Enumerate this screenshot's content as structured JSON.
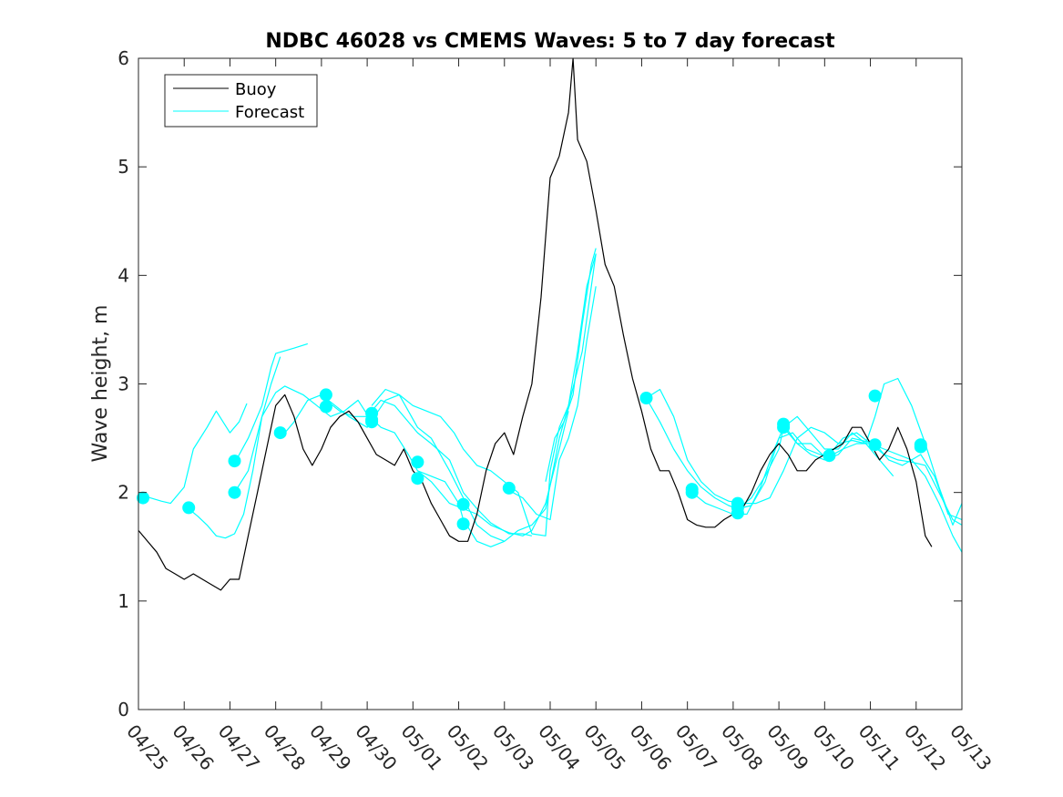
{
  "chart_data": {
    "type": "line",
    "title": "NDBC 46028 vs CMEMS Waves: 5 to 7 day forecast",
    "xlabel": "",
    "ylabel": "Wave height, m",
    "ylim": [
      0,
      6
    ],
    "xlim": [
      0,
      18
    ],
    "y_ticks": [
      "0",
      "1",
      "2",
      "3",
      "4",
      "5",
      "6"
    ],
    "x_ticks": [
      "04/25",
      "04/26",
      "04/27",
      "04/28",
      "04/29",
      "04/30",
      "05/01",
      "05/02",
      "05/03",
      "05/04",
      "05/05",
      "05/06",
      "05/07",
      "05/08",
      "05/09",
      "05/10",
      "05/11",
      "05/12",
      "05/13"
    ],
    "grid": false,
    "legend_position": "top-left",
    "colors": {
      "buoy": "#000000",
      "forecast": "#00ffff"
    },
    "series": [
      {
        "name": "Buoy",
        "x": [
          0.0,
          0.2,
          0.4,
          0.6,
          0.8,
          1.0,
          1.2,
          1.4,
          1.6,
          1.8,
          2.0,
          2.2,
          2.4,
          2.6,
          2.8,
          3.0,
          3.2,
          3.4,
          3.6,
          3.8,
          4.0,
          4.2,
          4.4,
          4.6,
          4.8,
          5.0,
          5.2,
          5.4,
          5.6,
          5.8,
          6.0,
          6.2,
          6.4,
          6.6,
          6.8,
          7.0,
          7.2,
          7.4,
          7.6,
          7.8,
          8.0,
          8.2,
          8.4,
          8.6,
          8.8,
          9.0,
          9.2,
          9.4,
          9.5,
          9.6,
          9.8,
          10.0,
          10.2,
          10.4,
          10.6,
          10.8,
          11.0,
          11.2,
          11.4,
          11.6,
          11.8,
          12.0,
          12.2,
          12.4,
          12.6,
          12.8,
          13.0,
          13.2,
          13.4,
          13.6,
          13.8,
          14.0,
          14.2,
          14.4,
          14.6,
          14.8,
          15.0,
          15.2,
          15.4,
          15.6,
          15.8,
          16.0,
          16.2,
          16.4,
          16.6,
          16.8,
          17.0,
          17.2,
          17.34
        ],
        "values": [
          1.65,
          1.55,
          1.45,
          1.3,
          1.25,
          1.2,
          1.25,
          1.2,
          1.15,
          1.1,
          1.2,
          1.2,
          1.6,
          2.0,
          2.4,
          2.8,
          2.9,
          2.7,
          2.4,
          2.25,
          2.4,
          2.6,
          2.7,
          2.75,
          2.65,
          2.5,
          2.35,
          2.3,
          2.25,
          2.4,
          2.2,
          2.1,
          1.9,
          1.75,
          1.6,
          1.55,
          1.55,
          1.8,
          2.2,
          2.45,
          2.55,
          2.35,
          2.7,
          3.0,
          3.8,
          4.9,
          5.1,
          5.5,
          6.0,
          5.25,
          5.05,
          4.6,
          4.1,
          3.9,
          3.45,
          3.05,
          2.75,
          2.4,
          2.2,
          2.2,
          2.0,
          1.75,
          1.7,
          1.68,
          1.68,
          1.75,
          1.8,
          1.85,
          2.0,
          2.2,
          2.35,
          2.45,
          2.35,
          2.2,
          2.2,
          2.3,
          2.35,
          2.4,
          2.45,
          2.6,
          2.6,
          2.45,
          2.3,
          2.4,
          2.6,
          2.4,
          2.1,
          1.6,
          1.5
        ]
      },
      {
        "name": "Forecast",
        "x": [
          0.1,
          0.5,
          0.7,
          1.0,
          1.2,
          1.5,
          1.7,
          2.0,
          2.2,
          2.37
        ],
        "values": [
          1.97,
          1.92,
          1.9,
          2.05,
          2.4,
          2.6,
          2.75,
          2.55,
          2.65,
          2.82
        ]
      },
      {
        "name": "",
        "x": [
          1.1,
          1.3,
          1.5,
          1.7,
          1.9,
          2.1,
          2.3,
          2.5,
          2.7,
          2.9,
          3.1
        ],
        "values": [
          1.85,
          1.78,
          1.7,
          1.6,
          1.58,
          1.62,
          1.8,
          2.2,
          2.7,
          3.0,
          3.25
        ]
      },
      {
        "name": "",
        "x": [
          2.1,
          2.4,
          2.7,
          2.9,
          3.0,
          3.4,
          3.7
        ],
        "values": [
          2.27,
          2.5,
          2.8,
          3.15,
          3.28,
          3.33,
          3.37
        ]
      },
      {
        "name": "",
        "x": [
          2.1,
          2.4,
          2.7,
          3.0,
          3.2,
          3.6,
          3.9,
          4.2,
          4.5,
          4.8,
          5.0,
          5.3,
          5.6,
          5.9,
          6.1,
          6.4,
          6.8,
          7.1,
          7.4,
          7.7,
          8.1,
          8.4,
          8.6,
          8.9,
          9.2,
          9.4
        ],
        "values": [
          2.0,
          2.2,
          2.7,
          2.92,
          2.98,
          2.9,
          2.8,
          2.7,
          2.75,
          2.85,
          2.72,
          2.6,
          2.55,
          2.35,
          2.2,
          2.1,
          1.9,
          1.85,
          1.8,
          1.7,
          1.63,
          1.6,
          1.65,
          1.9,
          2.4,
          2.75
        ]
      },
      {
        "name": "",
        "x": [
          3.1,
          3.4,
          3.7,
          4.0,
          4.3,
          4.6,
          5.0,
          5.4,
          5.7,
          6.1,
          6.4,
          6.8,
          7.1,
          7.4,
          7.7,
          8.0
        ],
        "values": [
          2.5,
          2.65,
          2.85,
          2.9,
          2.8,
          2.7,
          2.6,
          2.85,
          2.9,
          2.6,
          2.5,
          2.2,
          1.95,
          1.7,
          1.6,
          1.55
        ]
      },
      {
        "name": "",
        "x": [
          4.1,
          4.4,
          4.7,
          5.0,
          5.3,
          5.6,
          6.1,
          6.4,
          6.8,
          7.1,
          7.4,
          7.7,
          8.1,
          8.4,
          8.6
        ],
        "values": [
          2.85,
          2.75,
          2.7,
          2.7,
          2.85,
          2.8,
          2.55,
          2.45,
          2.3,
          2.0,
          1.85,
          1.72,
          1.62,
          1.62,
          1.6
        ]
      },
      {
        "name": "",
        "x": [
          5.1,
          5.4,
          5.7,
          6.0,
          6.3,
          6.6,
          6.9,
          7.1,
          7.4,
          7.7,
          8.0,
          8.3,
          8.6
        ],
        "values": [
          2.8,
          2.95,
          2.9,
          2.8,
          2.75,
          2.7,
          2.55,
          2.4,
          2.25,
          2.2,
          2.1,
          2.0,
          1.62
        ]
      },
      {
        "name": "",
        "x": [
          6.1,
          6.4,
          6.7,
          7.0,
          7.1,
          7.4,
          7.7,
          8.0,
          8.3,
          8.6,
          8.9,
          9.2,
          9.4,
          9.7,
          10.0
        ],
        "values": [
          2.2,
          2.15,
          2.1,
          1.9,
          1.75,
          1.55,
          1.5,
          1.55,
          1.65,
          1.7,
          1.85,
          2.5,
          2.8,
          3.3,
          4.2
        ]
      },
      {
        "name": "",
        "x": [
          8.1,
          8.4,
          8.7,
          9.0,
          9.2,
          9.4,
          9.6,
          9.8,
          10.0
        ],
        "values": [
          2.02,
          1.95,
          1.8,
          1.75,
          2.3,
          2.5,
          2.8,
          3.4,
          3.9
        ]
      },
      {
        "name": "",
        "x": [
          8.9,
          9.1,
          9.3,
          9.5,
          9.7,
          9.9,
          10.0
        ],
        "values": [
          2.1,
          2.5,
          2.65,
          2.9,
          3.55,
          4.1,
          4.25
        ]
      },
      {
        "name": "",
        "x": [
          8.6,
          8.9,
          9.0,
          9.2,
          9.4,
          9.6,
          9.8,
          10.0
        ],
        "values": [
          1.62,
          1.6,
          2.2,
          2.6,
          2.8,
          3.3,
          3.9,
          4.2
        ]
      },
      {
        "name": "",
        "x": [
          11.1,
          11.4,
          11.7,
          12.0,
          12.3,
          12.6,
          12.9,
          13.2,
          13.5,
          13.8,
          14.1,
          14.4,
          14.7,
          15.0,
          15.3,
          15.6,
          15.9,
          16.1,
          16.3,
          16.6,
          16.9,
          17.2,
          17.5,
          17.8,
          18.0
        ],
        "values": [
          2.87,
          2.95,
          2.7,
          2.3,
          2.1,
          1.98,
          1.92,
          1.9,
          1.9,
          1.95,
          2.2,
          2.5,
          2.6,
          2.55,
          2.45,
          2.48,
          2.45,
          2.7,
          3.0,
          3.05,
          2.8,
          2.45,
          2.05,
          1.7,
          1.9
        ]
      },
      {
        "name": "",
        "x": [
          11.1,
          11.4,
          11.7,
          12.0,
          12.3,
          12.6,
          12.9,
          13.1,
          13.4,
          13.7,
          14.0,
          14.3,
          14.6,
          14.9,
          15.1,
          15.4,
          15.7,
          16.0,
          16.3,
          16.6,
          16.9,
          17.2,
          17.5,
          17.8,
          18.0
        ],
        "values": [
          2.87,
          2.65,
          2.4,
          2.2,
          2.05,
          1.95,
          1.88,
          1.85,
          1.88,
          2.1,
          2.5,
          2.55,
          2.4,
          2.35,
          2.33,
          2.4,
          2.45,
          2.45,
          2.4,
          2.35,
          2.3,
          2.15,
          1.9,
          1.6,
          1.45
        ]
      },
      {
        "name": "",
        "x": [
          12.1,
          12.4,
          12.7,
          13.0,
          13.3,
          13.6,
          13.9,
          14.1,
          14.4,
          14.7,
          15.0,
          15.3,
          15.6,
          15.9,
          16.2,
          16.5
        ],
        "values": [
          2.0,
          1.9,
          1.85,
          1.8,
          1.8,
          2.05,
          2.4,
          2.6,
          2.7,
          2.55,
          2.4,
          2.4,
          2.55,
          2.45,
          2.3,
          2.15
        ]
      },
      {
        "name": "",
        "x": [
          13.1,
          13.4,
          13.7,
          14.0,
          14.1,
          14.4,
          14.7,
          15.0,
          15.1,
          15.4,
          15.7,
          16.0,
          16.3,
          16.6,
          16.9,
          17.2,
          17.5,
          17.8,
          18.0
        ],
        "values": [
          1.85,
          1.95,
          2.15,
          2.4,
          2.6,
          2.45,
          2.45,
          2.33,
          2.35,
          2.5,
          2.55,
          2.45,
          2.35,
          2.3,
          2.28,
          2.25,
          2.0,
          1.75,
          1.7
        ]
      },
      {
        "name": "",
        "x": [
          14.1,
          14.4,
          14.7,
          15.0,
          15.3,
          15.6,
          16.1,
          16.4,
          16.7,
          17.1,
          17.4,
          17.7,
          18.0
        ],
        "values": [
          2.63,
          2.45,
          2.35,
          2.3,
          2.35,
          2.5,
          2.45,
          2.3,
          2.25,
          2.35,
          2.15,
          1.8,
          1.75
        ]
      }
    ],
    "markers": {
      "name": "",
      "x": [
        0.1,
        1.1,
        2.1,
        2.1,
        3.1,
        4.1,
        4.1,
        5.1,
        5.1,
        5.1,
        6.1,
        6.1,
        7.1,
        7.1,
        8.1,
        11.1,
        12.1,
        12.1,
        13.1,
        13.1,
        13.1,
        14.1,
        14.1,
        15.1,
        16.1,
        16.1,
        17.1,
        17.1
      ],
      "values": [
        1.95,
        1.86,
        2.29,
        2.0,
        2.55,
        2.9,
        2.79,
        2.73,
        2.67,
        2.65,
        2.28,
        2.13,
        1.89,
        1.71,
        2.04,
        2.87,
        2.03,
        2.0,
        1.9,
        1.86,
        1.81,
        2.63,
        2.6,
        2.34,
        2.89,
        2.44,
        2.44,
        2.42
      ]
    }
  }
}
